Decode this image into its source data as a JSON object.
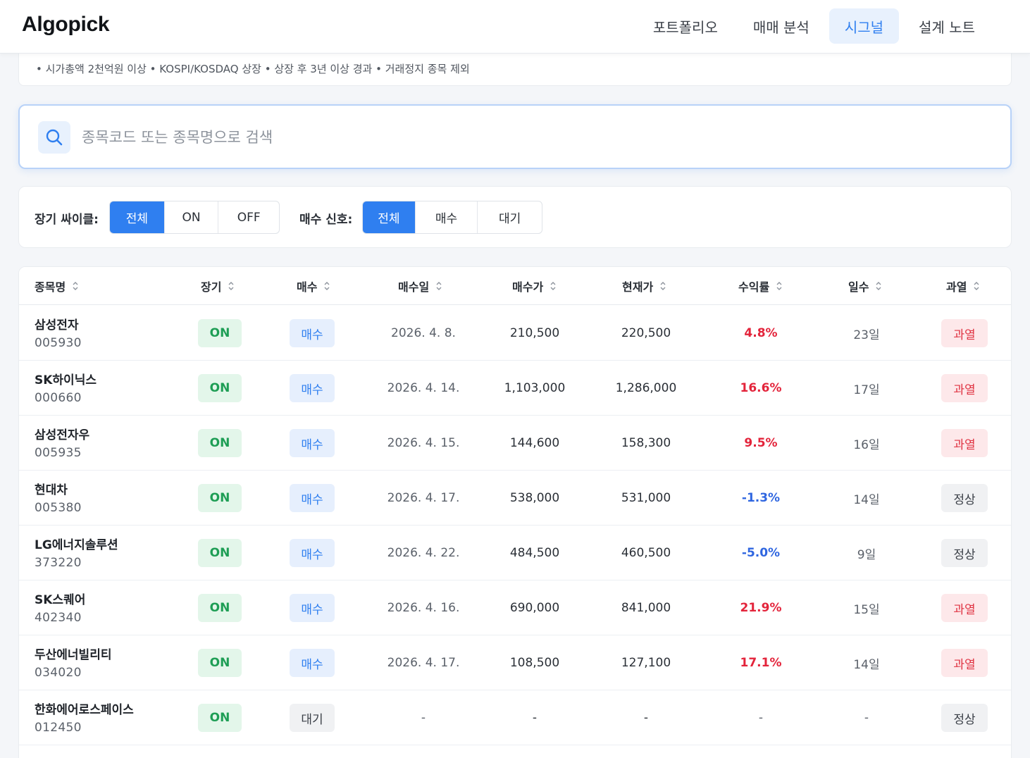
{
  "brand": "Algopick",
  "nav": {
    "items": [
      {
        "label": "포트폴리오"
      },
      {
        "label": "매매 분석"
      },
      {
        "label": "시그널"
      },
      {
        "label": "설계 노트"
      }
    ],
    "active": "시그널"
  },
  "criteria": "• 시가총액 2천억원 이상 • KOSPI/KOSDAQ 상장 • 상장 후 3년 이상 경과 • 거래정지 종목 제외",
  "search": {
    "placeholder": "종목코드 또는 종목명으로 검색",
    "value": ""
  },
  "filters": {
    "cycle": {
      "label": "장기 싸이클:",
      "options": [
        "전체",
        "ON",
        "OFF"
      ],
      "selected": "전체"
    },
    "signal": {
      "label": "매수 신호:",
      "options": [
        "전체",
        "매수",
        "대기"
      ],
      "selected": "전체"
    }
  },
  "colors": {
    "accent": "#2f7ff0",
    "positive": "#e3243b",
    "negative": "#2f66e0",
    "on": "#1e9e55"
  },
  "table": {
    "columns": [
      "종목명",
      "장기",
      "매수",
      "매수일",
      "매수가",
      "현재가",
      "수익률",
      "일수",
      "과열"
    ],
    "rows": [
      {
        "name": "삼성전자",
        "code": "005930",
        "cycle": "ON",
        "signal": "매수",
        "buy_date": "2026. 4. 8.",
        "buy_price": "210,500",
        "current_price": "220,500",
        "return": "4.8%",
        "days": "23일",
        "heat": "과열"
      },
      {
        "name": "SK하이닉스",
        "code": "000660",
        "cycle": "ON",
        "signal": "매수",
        "buy_date": "2026. 4. 14.",
        "buy_price": "1,103,000",
        "current_price": "1,286,000",
        "return": "16.6%",
        "days": "17일",
        "heat": "과열"
      },
      {
        "name": "삼성전자우",
        "code": "005935",
        "cycle": "ON",
        "signal": "매수",
        "buy_date": "2026. 4. 15.",
        "buy_price": "144,600",
        "current_price": "158,300",
        "return": "9.5%",
        "days": "16일",
        "heat": "과열"
      },
      {
        "name": "현대차",
        "code": "005380",
        "cycle": "ON",
        "signal": "매수",
        "buy_date": "2026. 4. 17.",
        "buy_price": "538,000",
        "current_price": "531,000",
        "return": "-1.3%",
        "days": "14일",
        "heat": "정상"
      },
      {
        "name": "LG에너지솔루션",
        "code": "373220",
        "cycle": "ON",
        "signal": "매수",
        "buy_date": "2026. 4. 22.",
        "buy_price": "484,500",
        "current_price": "460,500",
        "return": "-5.0%",
        "days": "9일",
        "heat": "정상"
      },
      {
        "name": "SK스퀘어",
        "code": "402340",
        "cycle": "ON",
        "signal": "매수",
        "buy_date": "2026. 4. 16.",
        "buy_price": "690,000",
        "current_price": "841,000",
        "return": "21.9%",
        "days": "15일",
        "heat": "과열"
      },
      {
        "name": "두산에너빌리티",
        "code": "034020",
        "cycle": "ON",
        "signal": "매수",
        "buy_date": "2026. 4. 17.",
        "buy_price": "108,500",
        "current_price": "127,100",
        "return": "17.1%",
        "days": "14일",
        "heat": "과열"
      },
      {
        "name": "한화에어로스페이스",
        "code": "012450",
        "cycle": "ON",
        "signal": "대기",
        "buy_date": "-",
        "buy_price": "-",
        "current_price": "-",
        "return": "-",
        "days": "-",
        "heat": "정상"
      }
    ]
  }
}
